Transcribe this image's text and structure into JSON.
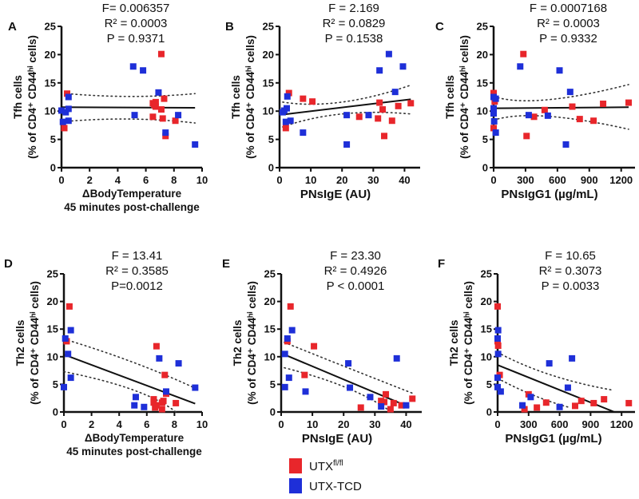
{
  "legend": {
    "items": [
      {
        "label": "UTX",
        "sup": "fl/fl",
        "color": "#e8262b"
      },
      {
        "label": "UTX-TCD",
        "sup": "",
        "color": "#1e2fd8"
      }
    ]
  },
  "chart_data": [
    {
      "type": "scatter",
      "panel": "A",
      "stats": [
        "F= 0.006357",
        "R² = 0.0003",
        "P = 0.9371"
      ],
      "ylabel": [
        "Tfh cells",
        "(% of CD4⁺ CD44ʰⁱ cells)"
      ],
      "xlabel": [
        "ΔBodyTemperature",
        "45 minutes post-challenge"
      ],
      "xlim": [
        0,
        10
      ],
      "xticks": [
        0,
        2,
        4,
        6,
        8,
        10
      ],
      "ylim": [
        0,
        25
      ],
      "yticks": [
        0,
        5,
        10,
        15,
        20,
        25
      ],
      "series": [
        {
          "name": "UTX fl/fl",
          "color": "#e8262b",
          "points": [
            [
              0.4,
              13.1
            ],
            [
              0.2,
              7.0
            ],
            [
              7.1,
              20.1
            ],
            [
              6.5,
              11.4
            ],
            [
              6.7,
              11.6
            ],
            [
              6.6,
              11.1
            ],
            [
              6.7,
              10.8
            ],
            [
              7.3,
              12.2
            ],
            [
              7.1,
              10.3
            ],
            [
              6.5,
              9.0
            ],
            [
              7.2,
              8.7
            ],
            [
              8.1,
              8.3
            ],
            [
              7.4,
              5.6
            ]
          ]
        },
        {
          "name": "UTX-TCD",
          "color": "#1e2fd8",
          "points": [
            [
              0.5,
              12.5
            ],
            [
              0.0,
              10.1
            ],
            [
              0.3,
              9.8
            ],
            [
              0.5,
              10.4
            ],
            [
              0.1,
              8.1
            ],
            [
              0.5,
              8.3
            ],
            [
              5.1,
              17.9
            ],
            [
              5.8,
              17.2
            ],
            [
              6.9,
              13.3
            ],
            [
              5.2,
              9.3
            ],
            [
              8.3,
              9.3
            ],
            [
              7.4,
              6.2
            ],
            [
              9.5,
              4.1
            ]
          ]
        }
      ],
      "fit": [
        [
          0,
          10.7
        ],
        [
          9.5,
          10.6
        ]
      ],
      "ci_upper": [
        [
          0.4,
          13.1
        ],
        [
          5,
          12.6
        ],
        [
          9.5,
          13.1
        ]
      ],
      "ci_lower": [
        [
          0.4,
          8.2
        ],
        [
          5,
          8.6
        ],
        [
          9.5,
          7.9
        ]
      ]
    },
    {
      "type": "scatter",
      "panel": "B",
      "stats": [
        "F = 2.169",
        "R² = 0.0829",
        "P = 0.1538"
      ],
      "ylabel": [
        "Tfh cells",
        "(% of CD4⁺ CD44ʰⁱ cells)"
      ],
      "xlabel": [
        "PNsIgE (AU)"
      ],
      "xlim": [
        0,
        45
      ],
      "xticks": [
        0,
        10,
        20,
        30,
        40
      ],
      "ylim": [
        0,
        25
      ],
      "yticks": [
        0,
        5,
        10,
        15,
        20,
        25
      ],
      "series": [
        {
          "name": "UTX fl/fl",
          "color": "#e8262b",
          "points": [
            [
              3,
              13.2
            ],
            [
              7.5,
              12.2
            ],
            [
              10.5,
              11.7
            ],
            [
              2,
              7.0
            ],
            [
              32,
              11.5
            ],
            [
              33,
              10.3
            ],
            [
              38,
              10.9
            ],
            [
              42,
              11.4
            ],
            [
              25.5,
              9.0
            ],
            [
              31.5,
              8.7
            ],
            [
              36,
              8.3
            ],
            [
              33.5,
              5.6
            ]
          ]
        },
        {
          "name": "UTX-TCD",
          "color": "#1e2fd8",
          "points": [
            [
              2.5,
              12.6
            ],
            [
              2.3,
              10.5
            ],
            [
              1.5,
              10.1
            ],
            [
              1,
              9.8
            ],
            [
              2,
              8.1
            ],
            [
              3.5,
              8.3
            ],
            [
              7.5,
              6.2
            ],
            [
              21.5,
              9.3
            ],
            [
              28.5,
              9.3
            ],
            [
              21.5,
              4.1
            ],
            [
              32,
              17.2
            ],
            [
              35,
              20.1
            ],
            [
              39.5,
              17.9
            ],
            [
              37,
              13.4
            ]
          ]
        }
      ],
      "fit": [
        [
          1,
          9.4
        ],
        [
          42,
          12.1
        ]
      ],
      "ci_upper": [
        [
          1,
          11.6
        ],
        [
          20,
          11.6
        ],
        [
          42,
          14.6
        ]
      ],
      "ci_lower": [
        [
          1,
          7.2
        ],
        [
          20,
          9.5
        ],
        [
          42,
          9.5
        ]
      ]
    },
    {
      "type": "scatter",
      "panel": "C",
      "stats": [
        "F = 0.0007168",
        "R² = 0.0003",
        "P = 0.9332"
      ],
      "ylabel": [
        "Tfh cells",
        "(% of CD4⁺ CD44ʰⁱ cells)"
      ],
      "xlabel": [
        "PNsIgG1 (µg/mL)"
      ],
      "xlim": [
        0,
        1330
      ],
      "xticks": [
        0,
        300,
        600,
        900,
        1200
      ],
      "ylim": [
        0,
        25
      ],
      "yticks": [
        0,
        5,
        10,
        15,
        20,
        25
      ],
      "series": [
        {
          "name": "UTX fl/fl",
          "color": "#e8262b",
          "points": [
            [
              0,
              13.2
            ],
            [
              10,
              11.7
            ],
            [
              0,
              7.0
            ],
            [
              280,
              20.1
            ],
            [
              480,
              10.2
            ],
            [
              740,
              10.8
            ],
            [
              1030,
              11.3
            ],
            [
              1270,
              11.5
            ],
            [
              380,
              9.0
            ],
            [
              810,
              8.6
            ],
            [
              940,
              8.3
            ],
            [
              310,
              5.6
            ]
          ]
        },
        {
          "name": "UTX-TCD",
          "color": "#1e2fd8",
          "points": [
            [
              0,
              12.5
            ],
            [
              20,
              12.2
            ],
            [
              0,
              10.5
            ],
            [
              0,
              10.0
            ],
            [
              0,
              9.6
            ],
            [
              5,
              8.2
            ],
            [
              20,
              6.2
            ],
            [
              250,
              17.9
            ],
            [
              620,
              17.2
            ],
            [
              720,
              13.4
            ],
            [
              330,
              9.3
            ],
            [
              510,
              9.2
            ],
            [
              680,
              4.1
            ]
          ]
        }
      ],
      "fit": [
        [
          0,
          10.5
        ],
        [
          1270,
          10.7
        ]
      ],
      "ci_upper": [
        [
          0,
          12.6
        ],
        [
          500,
          12.0
        ],
        [
          1270,
          14.7
        ]
      ],
      "ci_lower": [
        [
          0,
          8.4
        ],
        [
          500,
          9.1
        ],
        [
          1270,
          6.8
        ]
      ]
    },
    {
      "type": "scatter",
      "panel": "D",
      "stats": [
        "F = 13.41",
        "R² = 0.3585",
        "P=0.0012"
      ],
      "ylabel": [
        "Th2 cells",
        "(% of CD4⁺ CD44ʰⁱ cells)"
      ],
      "xlabel": [
        "ΔBodyTemperature",
        "45 minutes post-challenge"
      ],
      "xlim": [
        0,
        10
      ],
      "xticks": [
        0,
        2,
        4,
        6,
        8,
        10
      ],
      "ylim": [
        0,
        25
      ],
      "yticks": [
        0,
        5,
        10,
        15,
        20,
        25
      ],
      "series": [
        {
          "name": "UTX fl/fl",
          "color": "#e8262b",
          "points": [
            [
              0.4,
              19.1
            ],
            [
              0.2,
              12.8
            ],
            [
              6.7,
              11.9
            ],
            [
              7.3,
              6.7
            ],
            [
              7.4,
              3.3
            ],
            [
              6.5,
              2.3
            ],
            [
              6.5,
              1.7
            ],
            [
              6.6,
              0.8
            ],
            [
              6.7,
              1.2
            ],
            [
              7.1,
              1.7
            ],
            [
              7.2,
              2.0
            ],
            [
              7.1,
              0.5
            ],
            [
              8.1,
              1.6
            ]
          ]
        },
        {
          "name": "UTX-TCD",
          "color": "#1e2fd8",
          "points": [
            [
              0.5,
              14.8
            ],
            [
              0.1,
              13.3
            ],
            [
              0.3,
              10.5
            ],
            [
              0.5,
              6.2
            ],
            [
              0,
              4.5
            ],
            [
              6.9,
              9.7
            ],
            [
              8.3,
              8.8
            ],
            [
              9.5,
              4.4
            ],
            [
              7.4,
              3.7
            ],
            [
              5.2,
              2.7
            ],
            [
              5.1,
              1.2
            ],
            [
              5.8,
              0.9
            ]
          ]
        }
      ],
      "fit": [
        [
          0,
          10.4
        ],
        [
          9.5,
          1.5
        ]
      ],
      "ci_upper": [
        [
          0,
          13.2
        ],
        [
          5,
          9.0
        ],
        [
          9.5,
          4.3
        ]
      ],
      "ci_lower": [
        [
          0,
          7.3
        ],
        [
          5,
          4.0
        ],
        [
          8.1,
          0
        ]
      ]
    },
    {
      "type": "scatter",
      "panel": "E",
      "stats": [
        "F = 23.30",
        "R² = 0.4926",
        "P < 0.0001"
      ],
      "ylabel": [
        "Th2 cells",
        "(% of CD4⁺ CD44ʰⁱ cells)"
      ],
      "xlabel": [
        "PNsIgE (AU)"
      ],
      "xlim": [
        0,
        45
      ],
      "xticks": [
        0,
        10,
        20,
        30,
        40
      ],
      "ylim": [
        0,
        25
      ],
      "yticks": [
        0,
        5,
        10,
        15,
        20,
        25
      ],
      "series": [
        {
          "name": "UTX fl/fl",
          "color": "#e8262b",
          "points": [
            [
              3,
              19.1
            ],
            [
              2,
              12.8
            ],
            [
              10.5,
              11.9
            ],
            [
              7.5,
              6.7
            ],
            [
              33.5,
              3.2
            ],
            [
              42,
              2.4
            ],
            [
              32,
              2.0
            ],
            [
              33,
              1.8
            ],
            [
              36,
              1.6
            ],
            [
              38.5,
              1.2
            ],
            [
              25.5,
              0.8
            ],
            [
              35,
              0.5
            ]
          ]
        },
        {
          "name": "UTX-TCD",
          "color": "#1e2fd8",
          "points": [
            [
              3.5,
              14.8
            ],
            [
              2,
              13.3
            ],
            [
              1.2,
              10.5
            ],
            [
              2.5,
              6.2
            ],
            [
              1.2,
              4.5
            ],
            [
              7.8,
              3.7
            ],
            [
              21.5,
              8.8
            ],
            [
              37,
              9.7
            ],
            [
              22,
              4.4
            ],
            [
              28.5,
              2.7
            ],
            [
              32,
              1.0
            ],
            [
              40,
              1.2
            ]
          ]
        }
      ],
      "fit": [
        [
          1,
          10.4
        ],
        [
          41,
          0.9
        ]
      ],
      "ci_upper": [
        [
          1,
          12.6
        ],
        [
          20,
          8.3
        ],
        [
          42,
          3.4
        ]
      ],
      "ci_lower": [
        [
          1,
          8.0
        ],
        [
          20,
          4.6
        ],
        [
          34,
          0.5
        ]
      ]
    },
    {
      "type": "scatter",
      "panel": "F",
      "stats": [
        "F = 10.65",
        "R² = 0.3073",
        "P = 0.0033"
      ],
      "ylabel": [
        "Th2 cells",
        "(% of CD4⁺ CD44ʰⁱ cells)"
      ],
      "xlabel": [
        "PNsIgG1 (µg/mL)"
      ],
      "xlim": [
        0,
        1330
      ],
      "xticks": [
        0,
        300,
        600,
        900,
        1200
      ],
      "ylim": [
        0,
        25
      ],
      "yticks": [
        0,
        5,
        10,
        15,
        20,
        25
      ],
      "series": [
        {
          "name": "UTX fl/fl",
          "color": "#e8262b",
          "points": [
            [
              0,
              19.1
            ],
            [
              0,
              12.8
            ],
            [
              5,
              12.0
            ],
            [
              20,
              6.7
            ],
            [
              300,
              3.2
            ],
            [
              470,
              1.7
            ],
            [
              380,
              0.8
            ],
            [
              260,
              0.5
            ],
            [
              750,
              1.1
            ],
            [
              810,
              2.0
            ],
            [
              930,
              1.6
            ],
            [
              1030,
              2.3
            ],
            [
              1270,
              1.6
            ]
          ]
        },
        {
          "name": "UTX-TCD",
          "color": "#1e2fd8",
          "points": [
            [
              5,
              14.8
            ],
            [
              0,
              13.3
            ],
            [
              5,
              10.5
            ],
            [
              0,
              6.2
            ],
            [
              0,
              4.5
            ],
            [
              30,
              3.7
            ],
            [
              500,
              8.8
            ],
            [
              720,
              9.7
            ],
            [
              680,
              4.4
            ],
            [
              320,
              2.7
            ],
            [
              240,
              1.2
            ],
            [
              600,
              0.9
            ]
          ]
        }
      ],
      "fit": [
        [
          0,
          8.5
        ],
        [
          1130,
          0
        ]
      ],
      "ci_upper": [
        [
          0,
          10.8
        ],
        [
          500,
          6.8
        ],
        [
          1100,
          4.0
        ]
      ],
      "ci_lower": [
        [
          0,
          6.1
        ],
        [
          350,
          3.0
        ],
        [
          700,
          0.8
        ]
      ]
    }
  ]
}
